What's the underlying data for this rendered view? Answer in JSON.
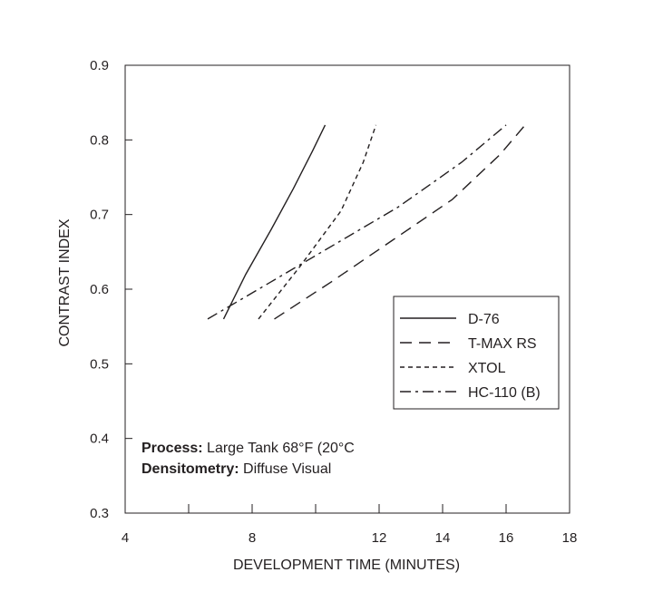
{
  "chart_data": {
    "type": "line",
    "xlabel": "DEVELOPMENT TIME (MINUTES)",
    "ylabel": "CONTRAST INDEX",
    "xlim": [
      4,
      18
    ],
    "ylim": [
      0.3,
      0.9
    ],
    "x_tick_labels": [
      "4",
      "8",
      "12",
      "14",
      "16",
      "18"
    ],
    "x_tick_values": [
      4,
      8,
      12,
      14,
      16,
      18
    ],
    "x_minor_ticks": [
      6,
      10
    ],
    "y_tick_labels": [
      "0.3",
      "0.4",
      "0.5",
      "0.6",
      "0.7",
      "0.8",
      "0.9"
    ],
    "y_tick_values": [
      0.3,
      0.4,
      0.5,
      0.6,
      0.7,
      0.8,
      0.9
    ],
    "grid": false,
    "legend_position": "right",
    "series": [
      {
        "name": "D-76",
        "style": "solid",
        "x": [
          7.1,
          7.8,
          8.6,
          9.3,
          9.9,
          10.3
        ],
        "y": [
          0.56,
          0.62,
          0.68,
          0.735,
          0.785,
          0.82
        ]
      },
      {
        "name": "T-MAX RS",
        "style": "dash",
        "x": [
          8.7,
          10.5,
          12.4,
          14.3,
          15.8,
          16.6
        ],
        "y": [
          0.56,
          0.61,
          0.665,
          0.72,
          0.78,
          0.82
        ]
      },
      {
        "name": "XTOL",
        "style": "dot",
        "x": [
          8.2,
          9.5,
          10.8,
          11.5,
          11.9
        ],
        "y": [
          0.56,
          0.63,
          0.705,
          0.77,
          0.82
        ]
      },
      {
        "name": "HC-110 (B)",
        "style": "dashdot",
        "x": [
          6.6,
          8.6,
          10.6,
          12.6,
          14.6,
          16.0
        ],
        "y": [
          0.56,
          0.61,
          0.66,
          0.71,
          0.77,
          0.82
        ]
      }
    ],
    "annotation": {
      "process_label": "Process:",
      "process_value": " Large Tank 68°F (20°C",
      "densitometry_label": "Densitometry:",
      "densitometry_value": " Diffuse Visual"
    }
  }
}
